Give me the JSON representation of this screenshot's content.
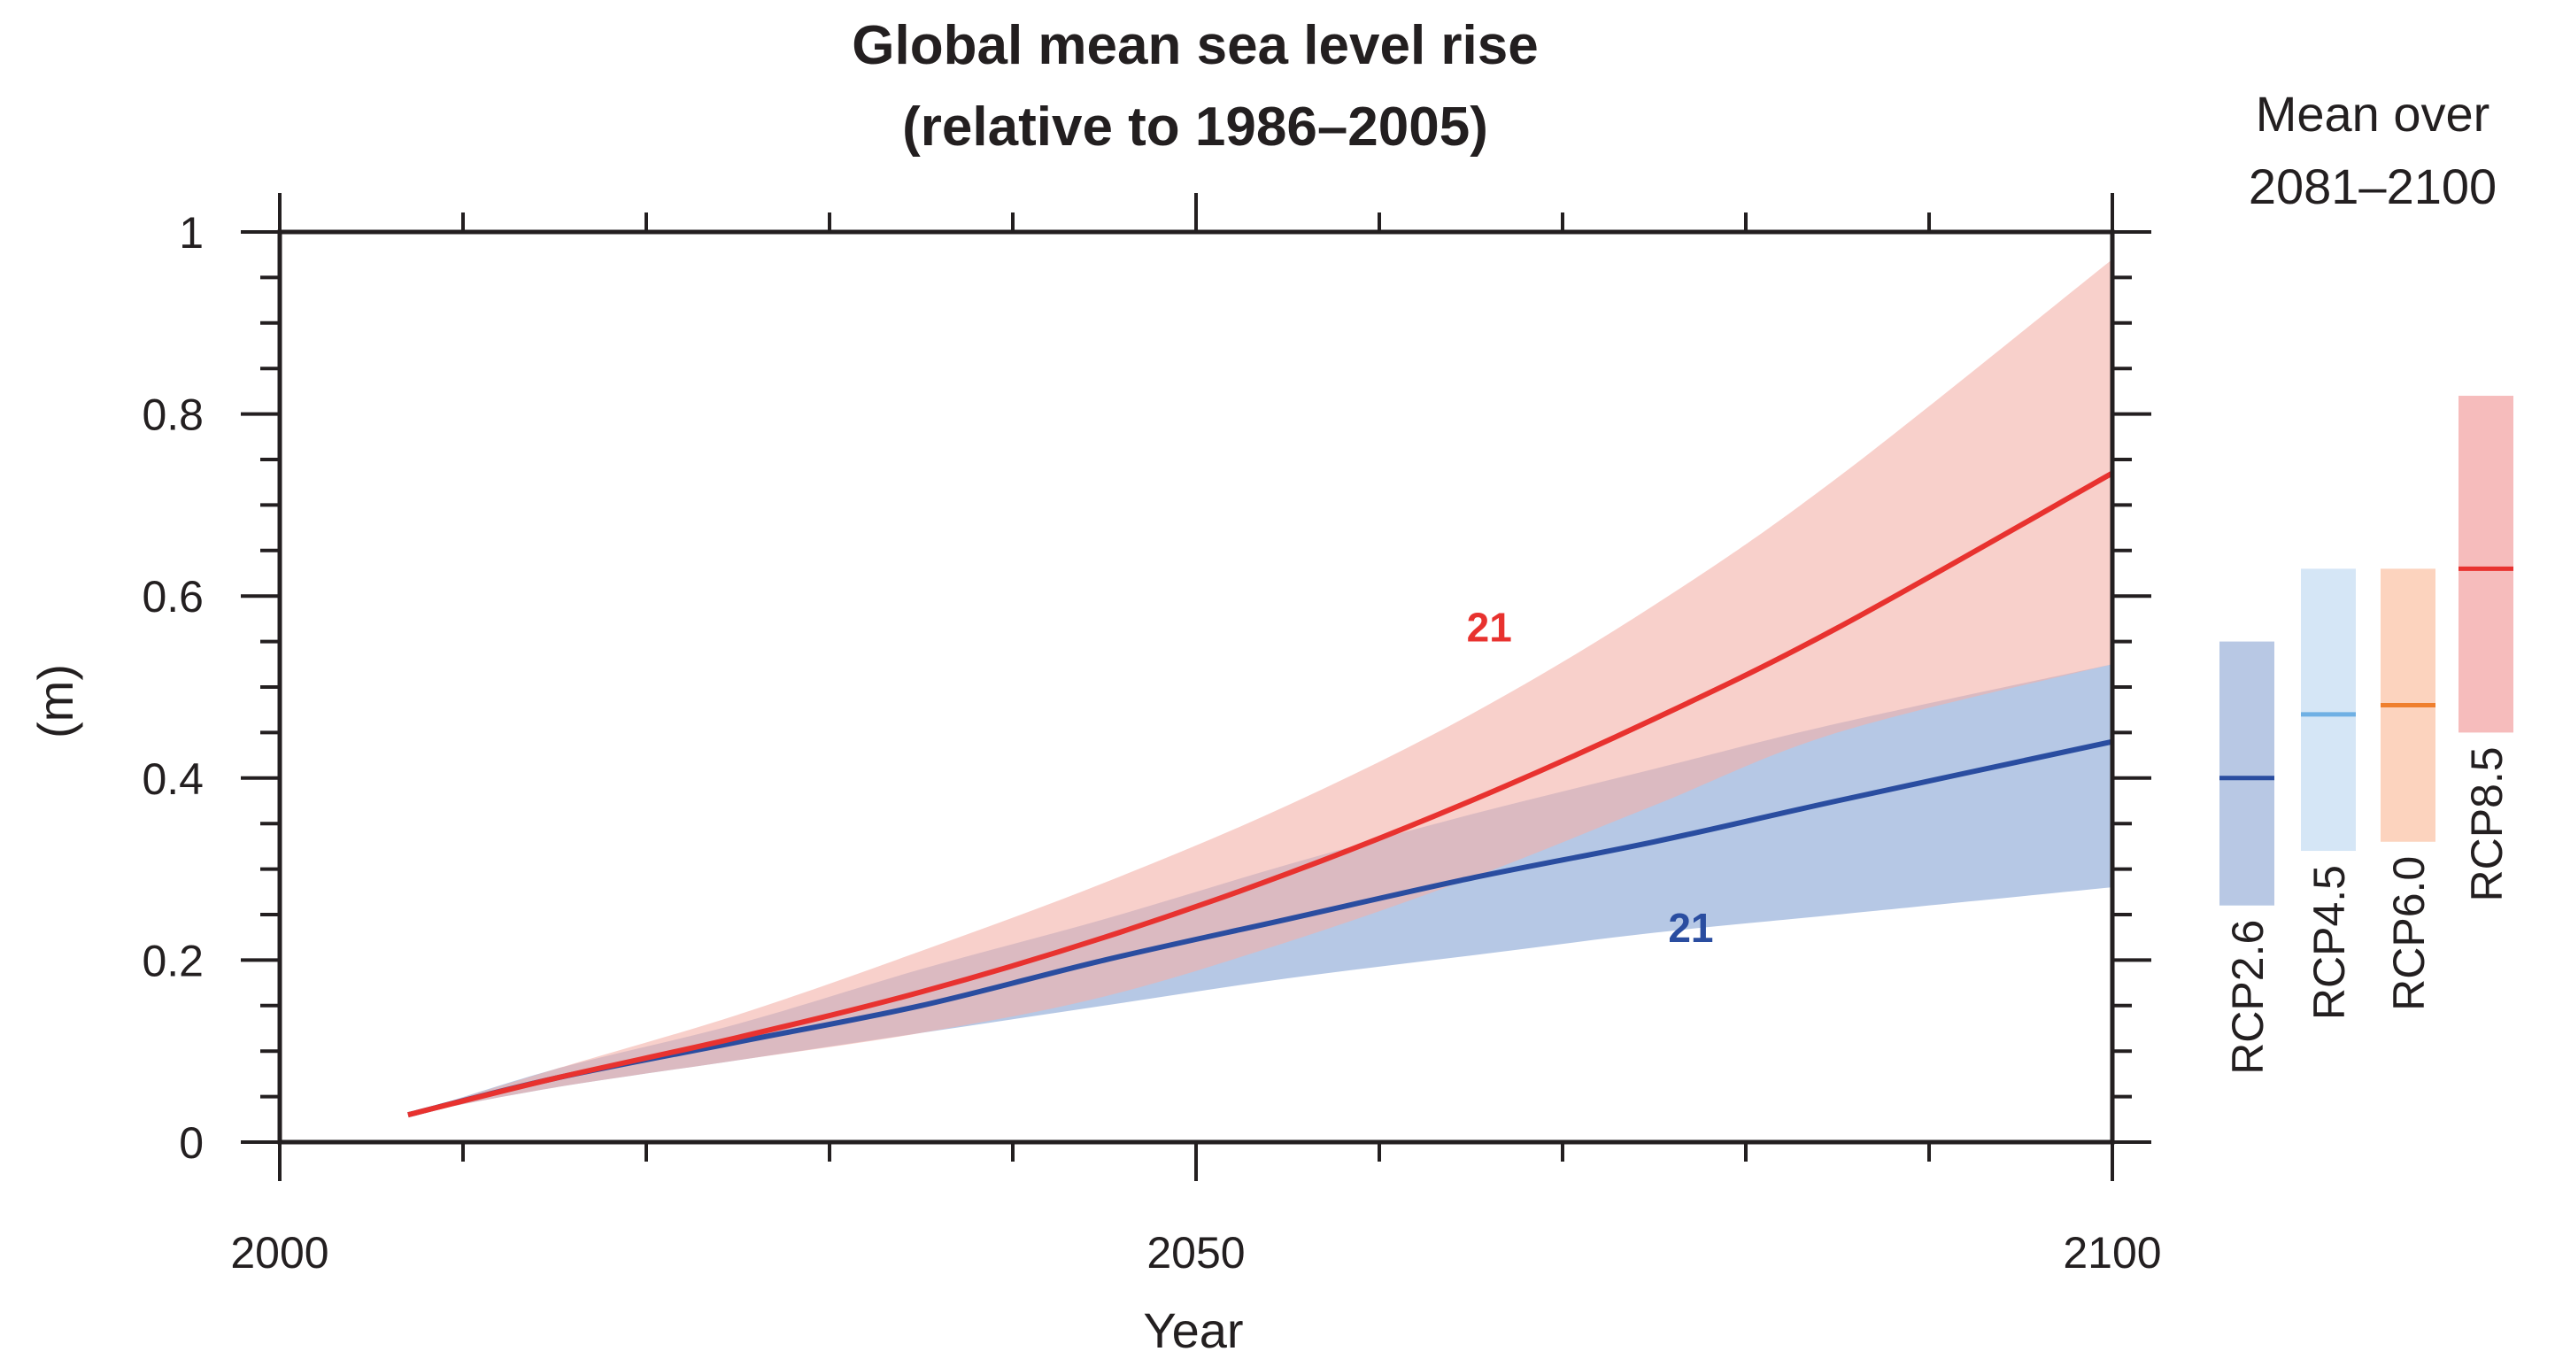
{
  "chart_data": {
    "type": "area",
    "title": [
      "Global mean sea level rise",
      "(relative to 1986–2005)"
    ],
    "xlabel": "Year",
    "ylabel": "(m)",
    "xlim": [
      2000,
      2100
    ],
    "ylim": [
      0,
      1
    ],
    "xticks": [
      2000,
      2050,
      2100
    ],
    "xtick_labels": [
      "2000",
      "2050",
      "2100"
    ],
    "yticks": [
      0,
      0.2,
      0.4,
      0.6,
      0.8,
      1
    ],
    "ytick_labels": [
      "0",
      "0.2",
      "0.4",
      "0.6",
      "0.8",
      "1"
    ],
    "grid": false,
    "series": [
      {
        "name": "RCP2.6",
        "color": "#2a4da0",
        "band_color": "#a9bee0",
        "annotation": "21",
        "x": [
          2007,
          2015,
          2025,
          2035,
          2045,
          2055,
          2065,
          2075,
          2085,
          2100
        ],
        "mean": [
          0.03,
          0.07,
          0.11,
          0.15,
          0.2,
          0.245,
          0.29,
          0.33,
          0.375,
          0.44
        ],
        "low": [
          0.03,
          0.06,
          0.09,
          0.12,
          0.15,
          0.18,
          0.205,
          0.23,
          0.25,
          0.28
        ],
        "high": [
          0.03,
          0.08,
          0.13,
          0.19,
          0.245,
          0.305,
          0.36,
          0.41,
          0.46,
          0.525
        ]
      },
      {
        "name": "RCP8.5",
        "color": "#e8322f",
        "band_color": "#f4b0a8",
        "annotation": "21",
        "x": [
          2007,
          2015,
          2025,
          2035,
          2045,
          2055,
          2065,
          2075,
          2085,
          2100
        ],
        "mean": [
          0.03,
          0.07,
          0.115,
          0.165,
          0.225,
          0.295,
          0.375,
          0.465,
          0.565,
          0.735
        ],
        "low": [
          0.03,
          0.06,
          0.09,
          0.12,
          0.16,
          0.22,
          0.29,
          0.37,
          0.45,
          0.525
        ],
        "high": [
          0.03,
          0.08,
          0.14,
          0.21,
          0.285,
          0.37,
          0.47,
          0.59,
          0.73,
          0.97
        ]
      }
    ],
    "annotations_y": [
      0.55,
      0.22
    ],
    "annotations_x": [
      2066,
      2077
    ],
    "side_panel": {
      "title": [
        "Mean over",
        "2081–2100"
      ],
      "bars": [
        {
          "label": "RCP2.6",
          "low": 0.26,
          "mean": 0.4,
          "high": 0.55,
          "fill": "#b8c8e4",
          "line": "#2a4da0"
        },
        {
          "label": "RCP4.5",
          "low": 0.32,
          "mean": 0.47,
          "high": 0.63,
          "fill": "#d5e6f6",
          "line": "#6fb0e4"
        },
        {
          "label": "RCP6.0",
          "low": 0.33,
          "mean": 0.48,
          "high": 0.63,
          "fill": "#fcd3be",
          "line": "#ef7f2e"
        },
        {
          "label": "RCP8.5",
          "low": 0.45,
          "mean": 0.63,
          "high": 0.82,
          "fill": "#f6bcbc",
          "line": "#e8322f"
        }
      ]
    }
  }
}
